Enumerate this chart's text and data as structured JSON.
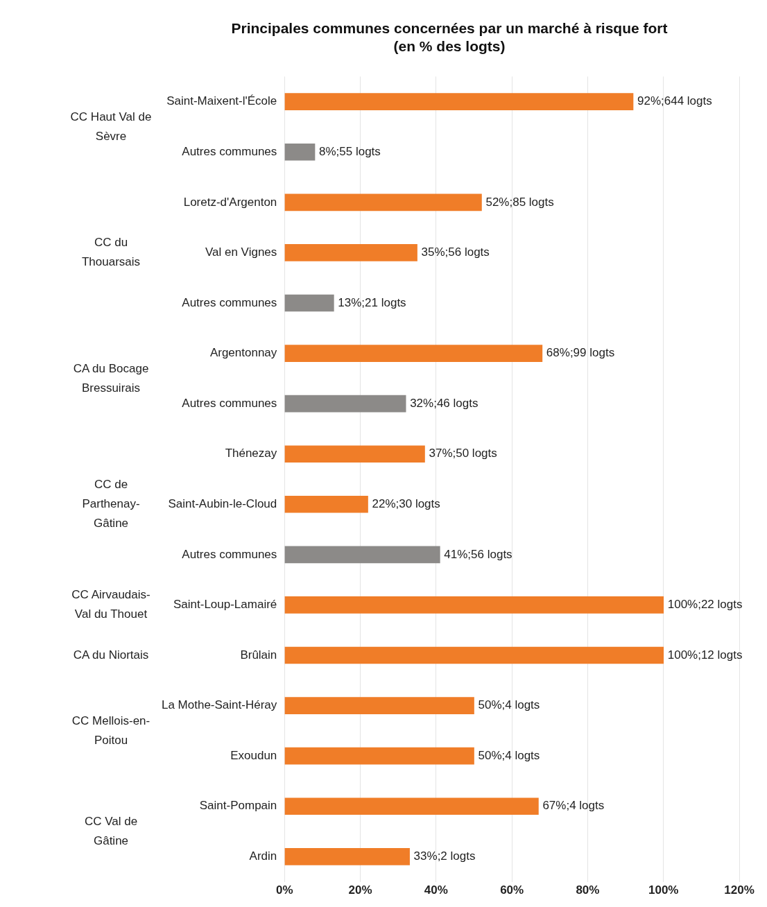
{
  "chart_data": {
    "type": "bar",
    "orientation": "horizontal",
    "title": [
      "Principales communes concernées par un marché à risque fort",
      "(en % des logts)"
    ],
    "categories": [
      "Saint-Maixent-l'École",
      "Autres communes",
      "Loretz-d'Argenton",
      "Val en Vignes",
      "Autres communes",
      "Argentonnay",
      "Autres communes",
      "Thénezay",
      "Saint-Aubin-le-Cloud",
      "Autres communes",
      "Saint-Loup-Lamairé",
      "Brûlain",
      "La Mothe-Saint-Héray",
      "Exoudun",
      "Saint-Pompain",
      "Ardin"
    ],
    "values": [
      92,
      8,
      52,
      35,
      13,
      68,
      32,
      37,
      22,
      41,
      100,
      100,
      50,
      50,
      67,
      33
    ],
    "colors": [
      "#f07d28",
      "#8c8a88",
      "#f07d28",
      "#f07d28",
      "#8c8a88",
      "#f07d28",
      "#8c8a88",
      "#f07d28",
      "#f07d28",
      "#8c8a88",
      "#f07d28",
      "#f07d28",
      "#f07d28",
      "#f07d28",
      "#f07d28",
      "#f07d28"
    ],
    "value_labels": [
      "92%;644 logts",
      "8%;55 logts",
      "52%;85 logts",
      "35%;56 logts",
      "13%;21 logts",
      "68%;99 logts",
      "32%;46 logts",
      "37%;50 logts",
      "22%;30 logts",
      "41%;56 logts",
      "100%;22 logts",
      "100%;12 logts",
      "50%;4 logts",
      "50%;4 logts",
      "67%;4 logts",
      "33%;2 logts"
    ],
    "annotations": [
      "CC Haut Val de Sèvre",
      "CC du Thouarsais",
      "CA du Bocage Bressuirais",
      "CC de Parthenay-Gâtine",
      "CC Airvaudais-Val du Thouet",
      "CA du Niortais",
      "CC Mellois-en-Poitou",
      "CC Val de Gâtine"
    ],
    "xlim": [
      0,
      120
    ],
    "xticks": [
      {
        "value": 0,
        "label": "0%"
      },
      {
        "value": 20,
        "label": "20%"
      },
      {
        "value": 40,
        "label": "40%"
      },
      {
        "value": 60,
        "label": "60%"
      },
      {
        "value": 80,
        "label": "80%"
      },
      {
        "value": 100,
        "label": "100%"
      },
      {
        "value": 120,
        "label": "120%"
      }
    ],
    "grid": "x",
    "legend": false
  }
}
